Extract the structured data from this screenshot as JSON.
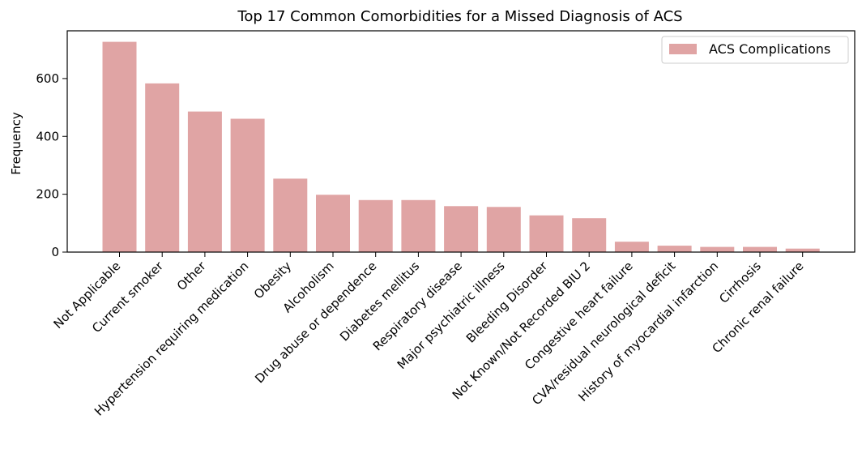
{
  "chart_data": {
    "type": "bar",
    "title": "Top 17 Common Comorbidities for a Missed Diagnosis of ACS",
    "xlabel": "",
    "ylabel": "Frequency",
    "categories": [
      "Not Applicable",
      "Current smoker",
      "Other",
      "Hypertension requiring medication",
      "Obesity",
      "Alcoholism",
      "Drug abuse or dependence",
      "Diabetes mellitus",
      "Respiratory disease",
      "Major psychiatric illness",
      "Bleeding Disorder",
      "Not Known/Not Recorded BIU 2",
      "Congestive heart failure",
      "CVA/residual neurological deficit",
      "History of myocardial infarction",
      "Cirrhosis",
      "Chronic renal failure"
    ],
    "series": [
      {
        "name": "ACS Complications",
        "color": "#e0a4a4",
        "values": [
          727,
          583,
          486,
          461,
          254,
          198,
          180,
          180,
          159,
          156,
          127,
          117,
          36,
          22,
          18,
          18,
          12
        ]
      }
    ],
    "ylim": [
      0,
      765
    ],
    "yticks": [
      0,
      200,
      400,
      600
    ],
    "legend": "top-right",
    "grid": false
  }
}
